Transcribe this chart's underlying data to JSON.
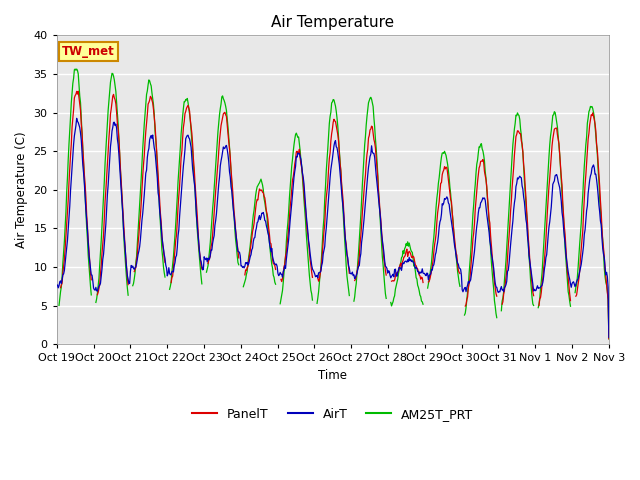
{
  "title": "Air Temperature",
  "ylabel": "Air Temperature (C)",
  "xlabel": "Time",
  "station_label": "TW_met",
  "ylim": [
    0,
    40
  ],
  "background_color": "#e8e8e8",
  "grid_color": "white",
  "xtick_labels": [
    "Oct 19",
    "Oct 20",
    "Oct 21",
    "Oct 22",
    "Oct 23",
    "Oct 24",
    "Oct 25",
    "Oct 26",
    "Oct 27",
    "Oct 28",
    "Oct 29",
    "Oct 30",
    "Oct 31",
    "Nov 1",
    "Nov 2",
    "Nov 3"
  ],
  "legend_labels": [
    "PanelT",
    "AirT",
    "AM25T_PRT"
  ],
  "legend_colors": [
    "#dd0000",
    "#0000bb",
    "#00bb00"
  ],
  "panel_color": "#dd0000",
  "air_color": "#0000bb",
  "am25t_color": "#00bb00",
  "num_days": 15,
  "note": "Oct 19 to Nov 3 = 15 days"
}
